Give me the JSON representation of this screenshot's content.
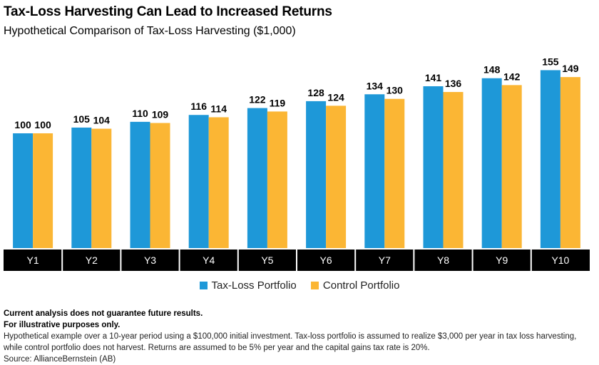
{
  "title": "Tax-Loss Harvesting Can Lead to Increased Returns",
  "subtitle": "Hypothetical Comparison of Tax-Loss Harvesting ($1,000)",
  "colors": {
    "tax_loss": "#1e98d8",
    "control": "#fbb634",
    "axis_band": "#000000"
  },
  "chart_data": {
    "type": "bar",
    "categories": [
      "Y1",
      "Y2",
      "Y3",
      "Y4",
      "Y5",
      "Y6",
      "Y7",
      "Y8",
      "Y9",
      "Y10"
    ],
    "series": [
      {
        "name": "Tax-Loss Portfolio",
        "values": [
          100,
          105,
          110,
          116,
          122,
          128,
          134,
          141,
          148,
          155
        ]
      },
      {
        "name": "Control Portfolio",
        "values": [
          100,
          104,
          109,
          114,
          119,
          124,
          130,
          136,
          142,
          149
        ]
      }
    ],
    "legend_position": "bottom-center"
  },
  "notes": {
    "line1": "Current analysis does not guarantee future results.",
    "line2": "For illustrative purposes only.",
    "line3": "Hypothetical example over a 10-year period using a $100,000 initial investment. Tax-loss portfolio is assumed to realize $3,000 per year in tax loss harvesting, while control portfolio does not harvest. Returns are assumed to be 5% per year and the capital gains tax rate is 20%.",
    "line4": "Source: AllianceBernstein (AB)"
  }
}
